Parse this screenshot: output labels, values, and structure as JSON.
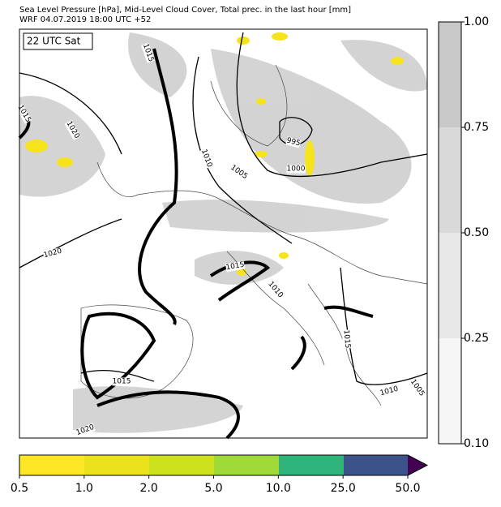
{
  "header": {
    "line1": "Sea Level Pressure [hPa], Mid-Level Cloud Cover, Total prec. in the last hour [mm]",
    "line2": "WRF 04.07.2019 18:00 UTC +52"
  },
  "time_label": "22 UTC Sat",
  "isobar_labels": [
    "1015",
    "1015",
    "1020",
    "1010",
    "1005",
    "995",
    "1000",
    "1020",
    "1015",
    "1010",
    "1015",
    "1015",
    "1010",
    "1005",
    "1020"
  ],
  "cloud_colorbar": {
    "ticks": [
      "1.00",
      "0.75",
      "0.50",
      "0.25",
      "0.10"
    ]
  },
  "precip_colorbar": {
    "ticks": [
      "0.5",
      "1.0",
      "2.0",
      "5.0",
      "10.0",
      "25.0",
      "50.0"
    ]
  }
}
